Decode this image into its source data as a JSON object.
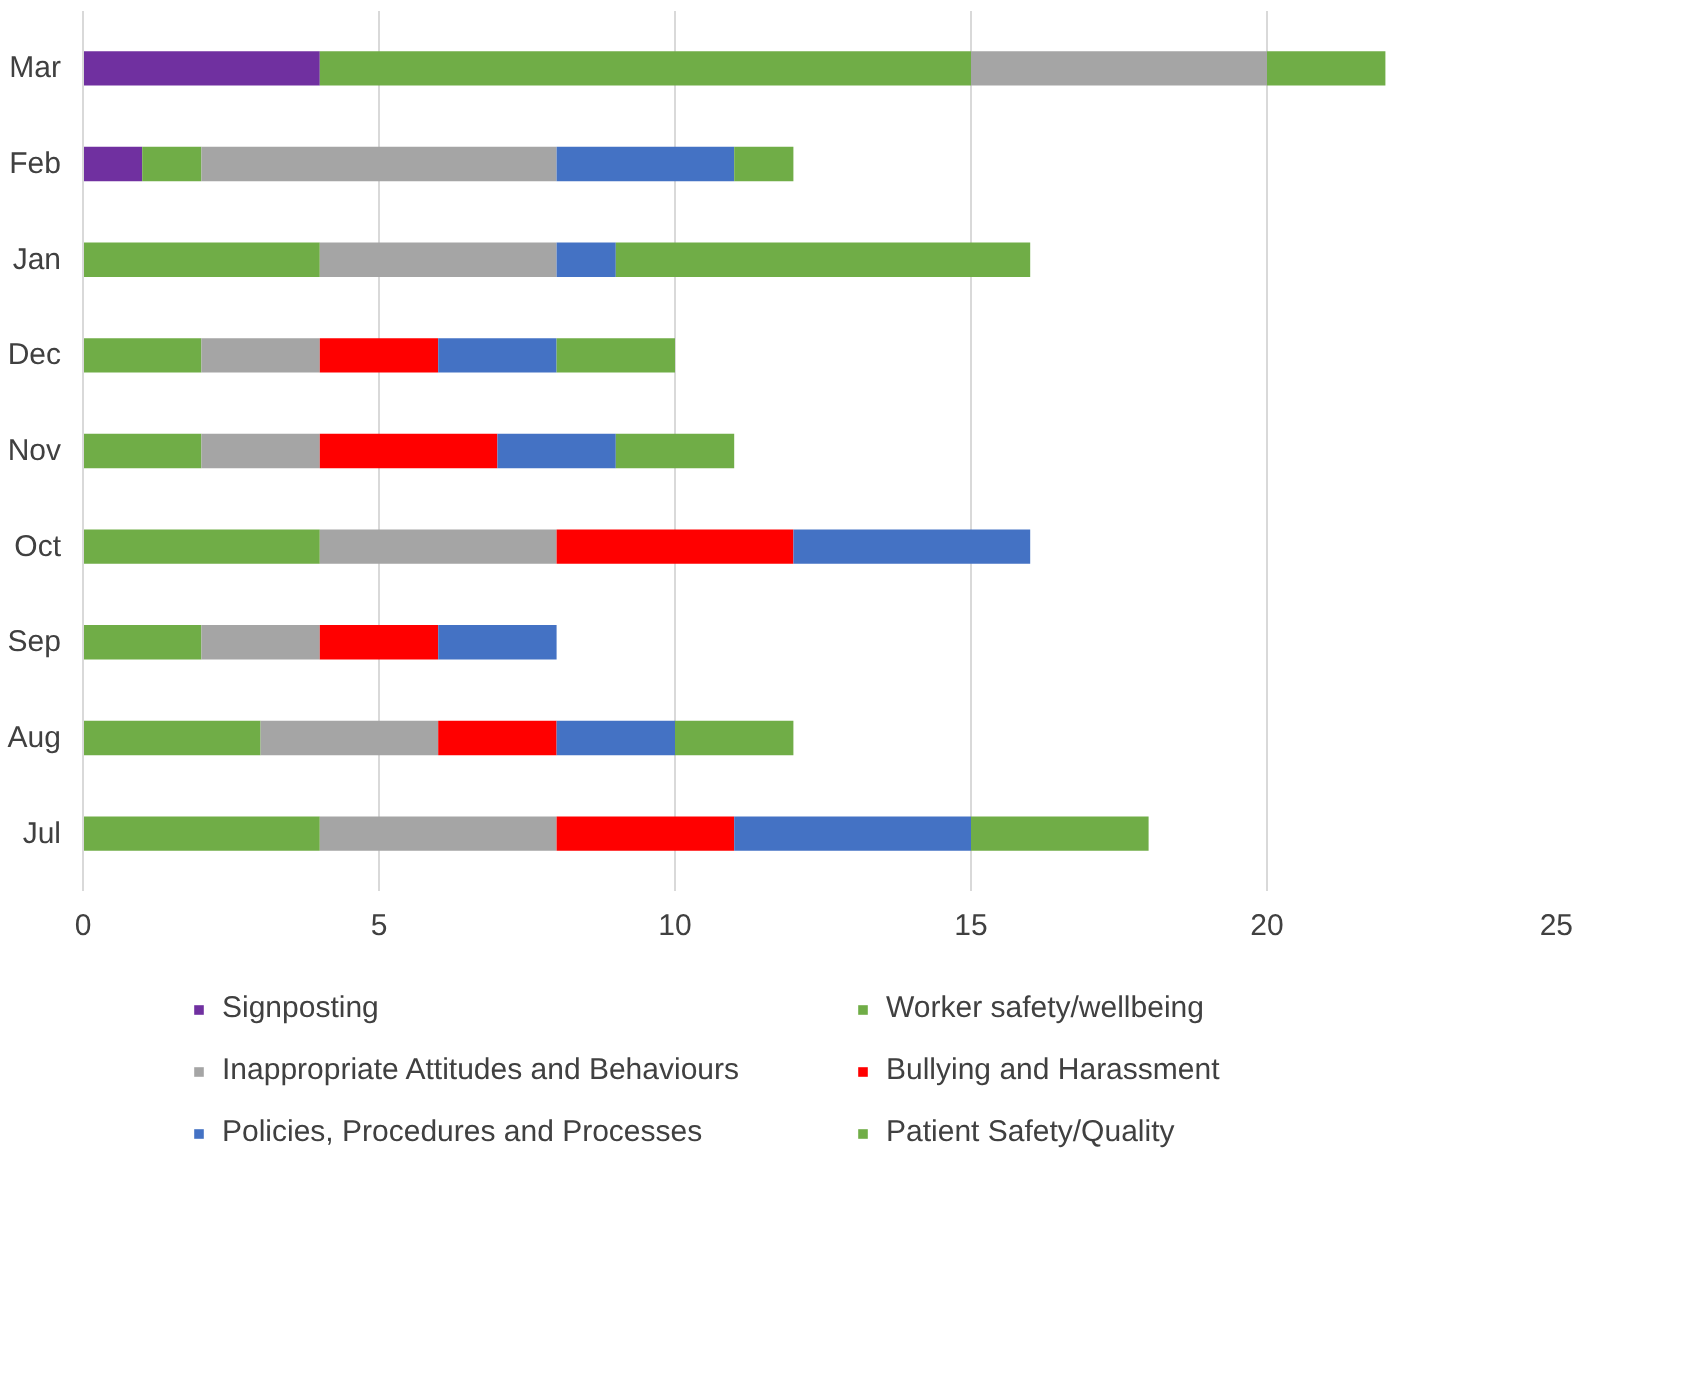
{
  "chart_data": {
    "type": "bar",
    "orientation": "horizontal",
    "stacked": true,
    "categories": [
      "Mar",
      "Feb",
      "Jan",
      "Dec",
      "Nov",
      "Oct",
      "Sep",
      "Aug",
      "Jul"
    ],
    "series": [
      {
        "name": "Signposting",
        "color": "#7030a0",
        "values": [
          4,
          1,
          null,
          null,
          null,
          null,
          null,
          null,
          null
        ]
      },
      {
        "name": "Worker safety/wellbeing",
        "color": "#70ad47",
        "values": [
          11,
          1,
          4,
          2,
          2,
          4,
          2,
          3,
          4
        ]
      },
      {
        "name": "Inappropriate Attitudes and Behaviours",
        "color": "#a5a5a5",
        "values": [
          5,
          6,
          4,
          2,
          2,
          4,
          2,
          3,
          4
        ]
      },
      {
        "name": "Bullying and Harassment",
        "color": "#ff0000",
        "values": [
          null,
          null,
          null,
          2,
          3,
          4,
          2,
          2,
          3
        ]
      },
      {
        "name": "Policies, Procedures and Processes",
        "color": "#4472c4",
        "values": [
          null,
          3,
          1,
          2,
          2,
          4,
          2,
          2,
          4
        ]
      },
      {
        "name": "Patient Safety/Quality",
        "color": "#70ad47",
        "values": [
          2,
          1,
          7,
          2,
          2,
          null,
          null,
          2,
          3
        ]
      }
    ],
    "xlim": [
      0,
      25
    ],
    "xticks": [
      0,
      5,
      10,
      15,
      20,
      25
    ],
    "grid": "x",
    "legend": "bottom"
  }
}
